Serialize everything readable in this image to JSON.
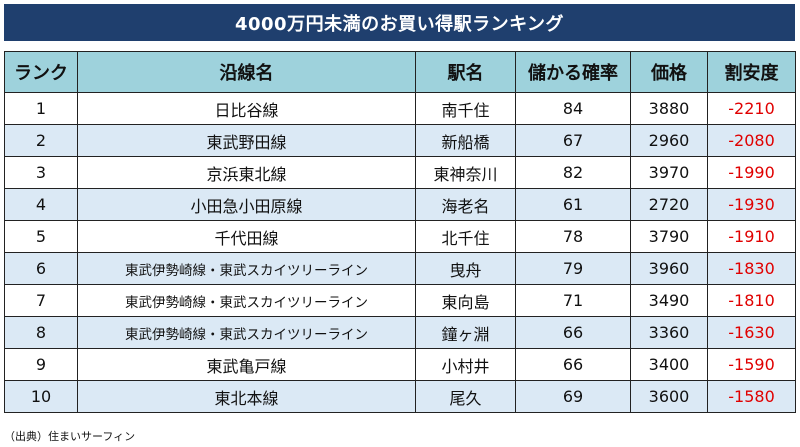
{
  "title": "4000万円未満のお買い得駅ランキング",
  "columns": [
    "ランク",
    "沿線名",
    "駅名",
    "儲かる確率",
    "価格",
    "割安度"
  ],
  "rows": [
    {
      "rank": "1",
      "line": "日比谷線",
      "station": "南千住",
      "probability": "84",
      "price": "3880",
      "discount": "-2210"
    },
    {
      "rank": "2",
      "line": "東武野田線",
      "station": "新船橋",
      "probability": "67",
      "price": "2960",
      "discount": "-2080"
    },
    {
      "rank": "3",
      "line": "京浜東北線",
      "station": "東神奈川",
      "probability": "82",
      "price": "3970",
      "discount": "-1990"
    },
    {
      "rank": "4",
      "line": "小田急小田原線",
      "station": "海老名",
      "probability": "61",
      "price": "2720",
      "discount": "-1930"
    },
    {
      "rank": "5",
      "line": "千代田線",
      "station": "北千住",
      "probability": "78",
      "price": "3790",
      "discount": "-1910"
    },
    {
      "rank": "6",
      "line": "東武伊勢崎線・東武スカイツリーライン",
      "station": "曳舟",
      "probability": "79",
      "price": "3960",
      "discount": "-1830"
    },
    {
      "rank": "7",
      "line": "東武伊勢崎線・東武スカイツリーライン",
      "station": "東向島",
      "probability": "71",
      "price": "3490",
      "discount": "-1810"
    },
    {
      "rank": "8",
      "line": "東武伊勢崎線・東武スカイツリーライン",
      "station": "鐘ヶ淵",
      "probability": "66",
      "price": "3360",
      "discount": "-1630"
    },
    {
      "rank": "9",
      "line": "東武亀戸線",
      "station": "小村井",
      "probability": "66",
      "price": "3400",
      "discount": "-1590"
    },
    {
      "rank": "10",
      "line": "東北本線",
      "station": "尾久",
      "probability": "69",
      "price": "3600",
      "discount": "-1580"
    }
  ],
  "source": "（出典）住まいサーフィン",
  "colors": {
    "title_bg": "#1f3f6e",
    "header_bg": "#9ed2dc",
    "stripe_bg": "#dbe9f5",
    "discount_text": "#e00000"
  }
}
